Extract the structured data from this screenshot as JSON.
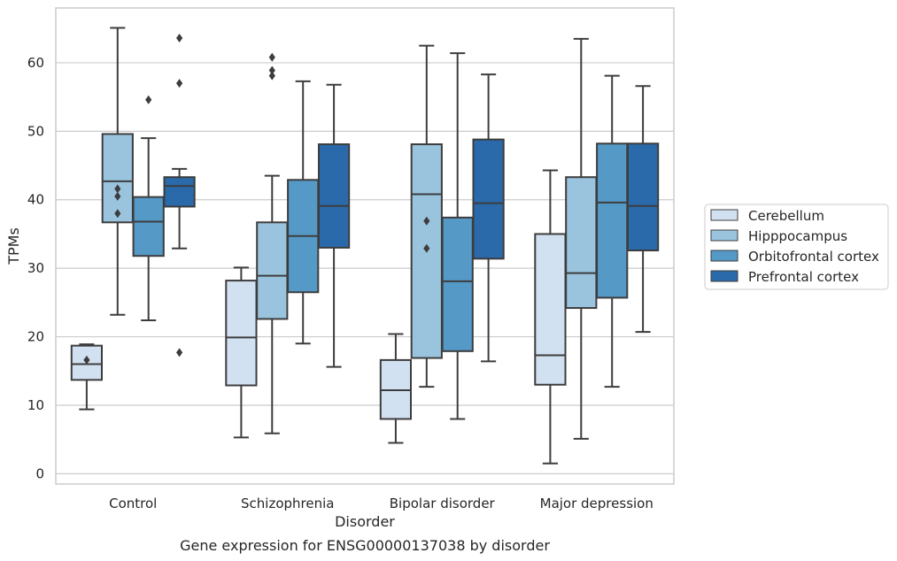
{
  "chart_data": {
    "type": "box",
    "xlabel": "Disorder",
    "ylabel": "TPMs",
    "caption": "Gene expression for ENSG00000137038 by disorder",
    "ylim": [
      -1.5,
      68
    ],
    "yticks": [
      0,
      10,
      20,
      30,
      40,
      50,
      60
    ],
    "grid": "horizontal",
    "legend_position": "right",
    "categories": [
      "Control",
      "Schizophrenia",
      "Bipolar disorder",
      "Major depression"
    ],
    "series": [
      {
        "name": "Cerebellum",
        "color": "#d2e1f1",
        "boxes": [
          {
            "whislo": 9.4,
            "q1": 13.7,
            "med": 16.0,
            "q3": 18.7,
            "whishi": 18.9,
            "fliers": [
              16.6
            ]
          },
          {
            "whislo": 5.3,
            "q1": 12.9,
            "med": 19.9,
            "q3": 28.2,
            "whishi": 30.1,
            "fliers": []
          },
          {
            "whislo": 4.5,
            "q1": 8.0,
            "med": 12.2,
            "q3": 16.6,
            "whishi": 20.4,
            "fliers": []
          },
          {
            "whislo": 1.5,
            "q1": 13.0,
            "med": 17.3,
            "q3": 35.0,
            "whishi": 44.3,
            "fliers": []
          }
        ]
      },
      {
        "name": "Hipppocampus",
        "color": "#9ac4de",
        "boxes": [
          {
            "whislo": 23.2,
            "q1": 36.7,
            "med": 42.7,
            "q3": 49.6,
            "whishi": 65.1,
            "fliers": [
              38.0,
              40.5,
              41.6
            ]
          },
          {
            "whislo": 5.9,
            "q1": 22.6,
            "med": 28.9,
            "q3": 36.7,
            "whishi": 43.5,
            "fliers": [
              58.1,
              58.9,
              60.8
            ]
          },
          {
            "whislo": 12.7,
            "q1": 16.9,
            "med": 40.8,
            "q3": 48.1,
            "whishi": 62.5,
            "fliers": [
              32.9,
              36.9
            ]
          },
          {
            "whislo": 5.1,
            "q1": 24.2,
            "med": 29.3,
            "q3": 43.3,
            "whishi": 63.5,
            "fliers": []
          }
        ]
      },
      {
        "name": "Orbitofrontal cortex",
        "color": "#5599c7",
        "boxes": [
          {
            "whislo": 22.4,
            "q1": 31.8,
            "med": 36.8,
            "q3": 40.4,
            "whishi": 49.0,
            "fliers": [
              54.6
            ]
          },
          {
            "whislo": 19.0,
            "q1": 26.5,
            "med": 34.7,
            "q3": 42.9,
            "whishi": 57.3,
            "fliers": []
          },
          {
            "whislo": 8.0,
            "q1": 17.9,
            "med": 28.1,
            "q3": 37.4,
            "whishi": 61.4,
            "fliers": []
          },
          {
            "whislo": 12.7,
            "q1": 25.7,
            "med": 39.6,
            "q3": 48.2,
            "whishi": 58.1,
            "fliers": []
          }
        ]
      },
      {
        "name": "Prefrontal cortex",
        "color": "#2a6aaa",
        "boxes": [
          {
            "whislo": 32.9,
            "q1": 39.0,
            "med": 42.0,
            "q3": 43.3,
            "whishi": 44.5,
            "fliers": [
              17.7,
              57.0,
              63.6
            ]
          },
          {
            "whislo": 15.6,
            "q1": 33.0,
            "med": 39.1,
            "q3": 48.1,
            "whishi": 56.8,
            "fliers": []
          },
          {
            "whislo": 16.4,
            "q1": 31.4,
            "med": 39.5,
            "q3": 48.8,
            "whishi": 58.3,
            "fliers": []
          },
          {
            "whislo": 20.7,
            "q1": 32.6,
            "med": 39.1,
            "q3": 48.2,
            "whishi": 56.6,
            "fliers": []
          }
        ]
      }
    ]
  }
}
